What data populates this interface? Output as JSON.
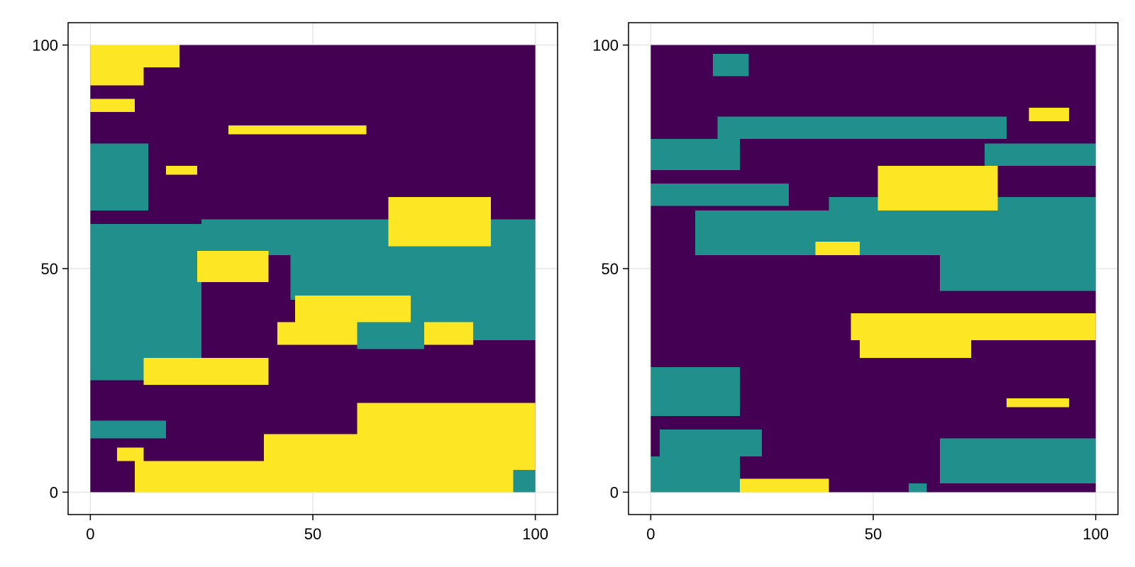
{
  "chart_data": [
    {
      "type": "heatmap",
      "title": "",
      "xlabel": "",
      "ylabel": "",
      "xlim": [
        -5,
        105
      ],
      "ylim": [
        -5,
        105
      ],
      "xticks": [
        0,
        50,
        100
      ],
      "yticks": [
        0,
        50,
        100
      ],
      "xtick_labels": [
        "0",
        "50",
        "100"
      ],
      "ytick_labels": [
        "0",
        "50",
        "100"
      ],
      "grid": true,
      "legend": false,
      "categories": [
        1,
        2,
        3
      ],
      "colors": {
        "1": "#440154",
        "2": "#21908d",
        "3": "#fde725"
      },
      "cell_size": 1,
      "background": 1,
      "regions": [
        {
          "category": 3,
          "y": [
            95,
            100
          ],
          "x": [
            0,
            20
          ]
        },
        {
          "category": 3,
          "y": [
            91,
            95
          ],
          "x": [
            0,
            12
          ]
        },
        {
          "category": 3,
          "y": [
            85,
            88
          ],
          "x": [
            0,
            10
          ]
        },
        {
          "category": 2,
          "y": [
            63,
            78
          ],
          "x": [
            0,
            13
          ]
        },
        {
          "category": 3,
          "y": [
            80,
            82
          ],
          "x": [
            31,
            62
          ]
        },
        {
          "category": 3,
          "y": [
            71,
            73
          ],
          "x": [
            17,
            24
          ]
        },
        {
          "category": 2,
          "y": [
            25,
            60
          ],
          "x": [
            0,
            25
          ]
        },
        {
          "category": 2,
          "y": [
            53,
            61
          ],
          "x": [
            25,
            100
          ]
        },
        {
          "category": 2,
          "y": [
            43,
            53
          ],
          "x": [
            45,
            100
          ]
        },
        {
          "category": 2,
          "y": [
            34,
            43
          ],
          "x": [
            68,
            100
          ]
        },
        {
          "category": 3,
          "y": [
            55,
            66
          ],
          "x": [
            67,
            90
          ]
        },
        {
          "category": 3,
          "y": [
            47,
            54
          ],
          "x": [
            24,
            40
          ]
        },
        {
          "category": 3,
          "y": [
            38,
            44
          ],
          "x": [
            46,
            72
          ]
        },
        {
          "category": 3,
          "y": [
            33,
            38
          ],
          "x": [
            42,
            86
          ]
        },
        {
          "category": 3,
          "y": [
            24,
            30
          ],
          "x": [
            12,
            40
          ]
        },
        {
          "category": 3,
          "y": [
            0,
            20
          ],
          "x": [
            60,
            100
          ]
        },
        {
          "category": 3,
          "y": [
            0,
            7
          ],
          "x": [
            10,
            60
          ]
        },
        {
          "category": 3,
          "y": [
            7,
            13
          ],
          "x": [
            39,
            60
          ]
        },
        {
          "category": 2,
          "y": [
            12,
            16
          ],
          "x": [
            0,
            17
          ]
        },
        {
          "category": 3,
          "y": [
            7,
            10
          ],
          "x": [
            6,
            12
          ]
        },
        {
          "category": 2,
          "y": [
            32,
            38
          ],
          "x": [
            60,
            75
          ]
        },
        {
          "category": 2,
          "y": [
            0,
            5
          ],
          "x": [
            95,
            100
          ]
        }
      ]
    },
    {
      "type": "heatmap",
      "title": "",
      "xlabel": "",
      "ylabel": "",
      "xlim": [
        -5,
        105
      ],
      "ylim": [
        -5,
        105
      ],
      "xticks": [
        0,
        50,
        100
      ],
      "yticks": [
        0,
        50,
        100
      ],
      "xtick_labels": [
        "0",
        "50",
        "100"
      ],
      "ytick_labels": [
        "0",
        "50",
        "100"
      ],
      "grid": true,
      "legend": false,
      "categories": [
        1,
        2,
        3
      ],
      "colors": {
        "1": "#440154",
        "2": "#21908d",
        "3": "#fde725"
      },
      "cell_size": 1,
      "background": 1,
      "regions": [
        {
          "category": 2,
          "y": [
            93,
            98
          ],
          "x": [
            14,
            22
          ]
        },
        {
          "category": 2,
          "y": [
            72,
            79
          ],
          "x": [
            0,
            20
          ]
        },
        {
          "category": 2,
          "y": [
            79,
            84
          ],
          "x": [
            15,
            80
          ]
        },
        {
          "category": 2,
          "y": [
            64,
            69
          ],
          "x": [
            0,
            31
          ]
        },
        {
          "category": 2,
          "y": [
            53,
            63
          ],
          "x": [
            10,
            100
          ]
        },
        {
          "category": 2,
          "y": [
            63,
            66
          ],
          "x": [
            40,
            100
          ]
        },
        {
          "category": 2,
          "y": [
            45,
            53
          ],
          "x": [
            65,
            100
          ]
        },
        {
          "category": 2,
          "y": [
            73,
            78
          ],
          "x": [
            75,
            100
          ]
        },
        {
          "category": 3,
          "y": [
            63,
            73
          ],
          "x": [
            51,
            78
          ]
        },
        {
          "category": 3,
          "y": [
            83,
            86
          ],
          "x": [
            85,
            94
          ]
        },
        {
          "category": 3,
          "y": [
            53,
            56
          ],
          "x": [
            37,
            47
          ]
        },
        {
          "category": 3,
          "y": [
            34,
            40
          ],
          "x": [
            45,
            100
          ]
        },
        {
          "category": 3,
          "y": [
            30,
            34
          ],
          "x": [
            47,
            72
          ]
        },
        {
          "category": 2,
          "y": [
            0,
            8
          ],
          "x": [
            0,
            20
          ]
        },
        {
          "category": 2,
          "y": [
            8,
            14
          ],
          "x": [
            2,
            25
          ]
        },
        {
          "category": 2,
          "y": [
            17,
            28
          ],
          "x": [
            0,
            20
          ]
        },
        {
          "category": 2,
          "y": [
            2,
            12
          ],
          "x": [
            65,
            100
          ]
        },
        {
          "category": 3,
          "y": [
            0,
            3
          ],
          "x": [
            20,
            40
          ]
        },
        {
          "category": 3,
          "y": [
            19,
            21
          ],
          "x": [
            80,
            94
          ]
        },
        {
          "category": 2,
          "y": [
            0,
            2
          ],
          "x": [
            58,
            62
          ]
        }
      ]
    }
  ]
}
